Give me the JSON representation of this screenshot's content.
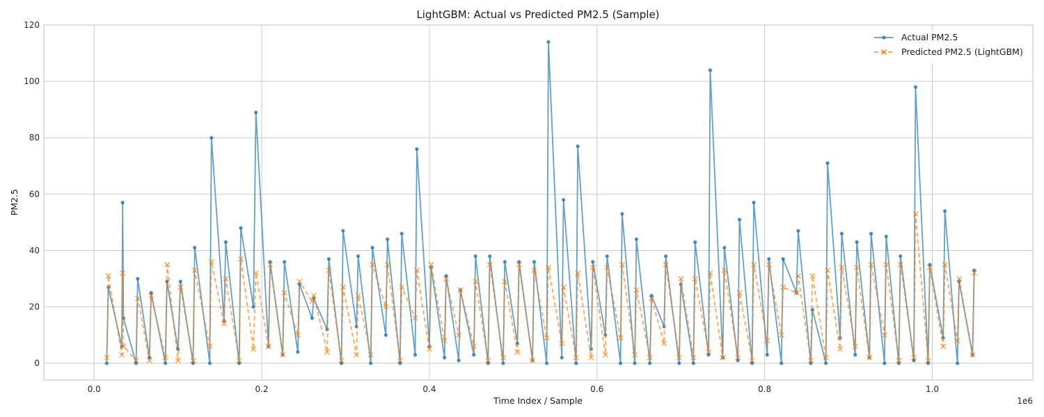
{
  "chart_data": {
    "type": "line",
    "title": "LightGBM: Actual vs Predicted PM2.5 (Sample)",
    "xlabel": "Time Index / Sample",
    "ylabel": "PM2.5",
    "x_offset_label": "1e6",
    "x_scale": 1000000,
    "xlim": [
      -0.06,
      1.12
    ],
    "ylim": [
      -6,
      120
    ],
    "xticks": [
      0.0,
      0.2,
      0.4,
      0.6,
      0.8,
      1.0
    ],
    "xtick_labels": [
      "0.0",
      "0.2",
      "0.4",
      "0.6",
      "0.8",
      "1.0"
    ],
    "yticks": [
      0,
      20,
      40,
      60,
      80,
      100,
      120
    ],
    "ytick_labels": [
      "0",
      "20",
      "40",
      "60",
      "80",
      "100",
      "120"
    ],
    "grid": true,
    "legend_position": "top-right",
    "series": [
      {
        "name": "Actual PM2.5",
        "color": "#1f77b4",
        "style": "solid",
        "marker": "dot",
        "x": [
          0.015,
          0.017,
          0.033,
          0.034,
          0.035,
          0.05,
          0.052,
          0.066,
          0.068,
          0.085,
          0.087,
          0.1,
          0.103,
          0.118,
          0.12,
          0.138,
          0.14,
          0.155,
          0.157,
          0.173,
          0.175,
          0.19,
          0.193,
          0.208,
          0.21,
          0.225,
          0.227,
          0.243,
          0.245,
          0.26,
          0.262,
          0.278,
          0.28,
          0.295,
          0.297,
          0.313,
          0.315,
          0.33,
          0.332,
          0.348,
          0.35,
          0.365,
          0.367,
          0.383,
          0.385,
          0.4,
          0.402,
          0.418,
          0.42,
          0.435,
          0.437,
          0.453,
          0.455,
          0.47,
          0.472,
          0.488,
          0.49,
          0.505,
          0.507,
          0.523,
          0.525,
          0.54,
          0.542,
          0.558,
          0.56,
          0.575,
          0.577,
          0.593,
          0.595,
          0.61,
          0.612,
          0.628,
          0.63,
          0.645,
          0.647,
          0.663,
          0.665,
          0.68,
          0.682,
          0.698,
          0.7,
          0.715,
          0.717,
          0.733,
          0.735,
          0.75,
          0.752,
          0.768,
          0.77,
          0.785,
          0.787,
          0.803,
          0.805,
          0.82,
          0.822,
          0.838,
          0.84,
          0.855,
          0.857,
          0.873,
          0.875,
          0.89,
          0.892,
          0.908,
          0.91,
          0.925,
          0.927,
          0.943,
          0.945,
          0.96,
          0.962,
          0.978,
          0.98,
          0.995,
          0.997,
          1.013,
          1.015,
          1.03,
          1.032,
          1.048,
          1.05
        ],
        "y": [
          0,
          27,
          6,
          57,
          16,
          0,
          30,
          2,
          25,
          0,
          29,
          5,
          29,
          0,
          41,
          0,
          80,
          15,
          43,
          0,
          48,
          20,
          89,
          6,
          36,
          3,
          36,
          4,
          28,
          16,
          23,
          12,
          37,
          0,
          47,
          13,
          38,
          0,
          41,
          10,
          44,
          0,
          46,
          3,
          76,
          6,
          34,
          2,
          31,
          1,
          26,
          3,
          38,
          0,
          38,
          0,
          36,
          7,
          36,
          1,
          36,
          0,
          114,
          2,
          58,
          0,
          77,
          5,
          36,
          10,
          38,
          0,
          53,
          0,
          44,
          0,
          24,
          13,
          38,
          0,
          28,
          0,
          43,
          3,
          104,
          2,
          41,
          1,
          51,
          0,
          57,
          3,
          37,
          0,
          37,
          25,
          47,
          0,
          19,
          0,
          71,
          9,
          46,
          3,
          43,
          2,
          46,
          0,
          45,
          0,
          38,
          1,
          98,
          0,
          35,
          9,
          54,
          0,
          29,
          3,
          33
        ]
      },
      {
        "name": "Predicted PM2.5 (LightGBM)",
        "color": "#ff7f0e",
        "style": "dashed",
        "marker": "x",
        "x": [
          0.015,
          0.017,
          0.033,
          0.034,
          0.035,
          0.05,
          0.052,
          0.066,
          0.068,
          0.085,
          0.087,
          0.1,
          0.103,
          0.118,
          0.12,
          0.138,
          0.14,
          0.155,
          0.157,
          0.173,
          0.175,
          0.19,
          0.193,
          0.208,
          0.21,
          0.225,
          0.227,
          0.243,
          0.245,
          0.26,
          0.262,
          0.278,
          0.28,
          0.295,
          0.297,
          0.313,
          0.315,
          0.33,
          0.332,
          0.348,
          0.35,
          0.365,
          0.367,
          0.383,
          0.385,
          0.4,
          0.402,
          0.418,
          0.42,
          0.435,
          0.437,
          0.453,
          0.455,
          0.47,
          0.472,
          0.488,
          0.49,
          0.505,
          0.507,
          0.523,
          0.525,
          0.54,
          0.542,
          0.558,
          0.56,
          0.575,
          0.577,
          0.593,
          0.595,
          0.61,
          0.612,
          0.628,
          0.63,
          0.645,
          0.647,
          0.663,
          0.665,
          0.68,
          0.682,
          0.698,
          0.7,
          0.715,
          0.717,
          0.733,
          0.735,
          0.75,
          0.752,
          0.768,
          0.77,
          0.785,
          0.787,
          0.803,
          0.805,
          0.82,
          0.822,
          0.838,
          0.84,
          0.855,
          0.857,
          0.873,
          0.875,
          0.89,
          0.892,
          0.908,
          0.91,
          0.925,
          0.927,
          0.943,
          0.945,
          0.96,
          0.962,
          0.978,
          0.98,
          0.995,
          0.997,
          1.013,
          1.015,
          1.03,
          1.032,
          1.048,
          1.05
        ],
        "y": [
          2,
          31,
          3,
          32,
          6,
          1,
          23,
          1,
          24,
          2,
          35,
          1,
          27,
          1,
          33,
          6,
          36,
          14,
          30,
          1,
          37,
          5,
          32,
          6,
          35,
          3,
          25,
          10,
          29,
          22,
          24,
          4,
          33,
          1,
          27,
          3,
          24,
          3,
          35,
          20,
          35,
          1,
          27,
          16,
          33,
          5,
          35,
          8,
          30,
          10,
          26,
          6,
          29,
          1,
          35,
          2,
          29,
          4,
          35,
          1,
          33,
          9,
          34,
          7,
          27,
          2,
          32,
          2,
          34,
          3,
          34,
          9,
          35,
          3,
          26,
          2,
          23,
          7,
          35,
          2,
          30,
          2,
          30,
          4,
          32,
          2,
          33,
          2,
          25,
          1,
          35,
          8,
          35,
          10,
          27,
          25,
          31,
          1,
          31,
          2,
          33,
          5,
          34,
          6,
          34,
          2,
          35,
          10,
          35,
          1,
          35,
          2,
          53,
          1,
          34,
          6,
          35,
          8,
          30,
          3,
          32
        ]
      }
    ]
  }
}
